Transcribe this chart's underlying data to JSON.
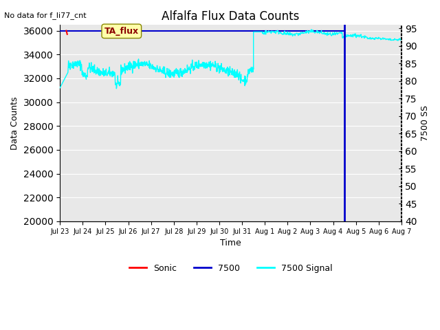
{
  "title": "Alfalfa Flux Data Counts",
  "top_left_text": "No data for f_li77_cnt",
  "ylabel_left": "Data Counts",
  "ylabel_right": "7500 SS",
  "xlabel": "Time",
  "annotation_box": "TA_flux",
  "ylim_left": [
    20000,
    36500
  ],
  "ylim_right": [
    40,
    96
  ],
  "bg_color": "#e8e8e8",
  "fig_bg_color": "#ffffff",
  "sonic_line_color": "#ff0000",
  "li7500_line_color": "#0000cc",
  "signal_line_color": "#00ffff",
  "legend_labels": [
    "Sonic",
    "7500",
    "7500 Signal"
  ],
  "legend_colors": [
    "#ff0000",
    "#0000cc",
    "#00ffff"
  ],
  "left_ticks": [
    20000,
    22000,
    24000,
    26000,
    28000,
    30000,
    32000,
    34000,
    36000
  ],
  "right_ticks": [
    40,
    45,
    50,
    55,
    60,
    65,
    70,
    75,
    80,
    85,
    90,
    95
  ],
  "x_tick_positions": [
    0,
    1,
    2,
    3,
    4,
    5,
    6,
    7,
    8,
    9,
    10,
    11,
    12,
    13,
    14,
    15
  ],
  "x_tick_labels": [
    "Jul 23",
    "Jul 24",
    "Jul 25",
    "Jul 26",
    "Jul 27",
    "Jul 28",
    "Jul 29",
    "Jul 30",
    "Jul 31",
    "Aug 1",
    "Aug 2",
    "Aug 3",
    "Aug 4",
    "Aug 5",
    "Aug 6",
    "Aug 7"
  ]
}
